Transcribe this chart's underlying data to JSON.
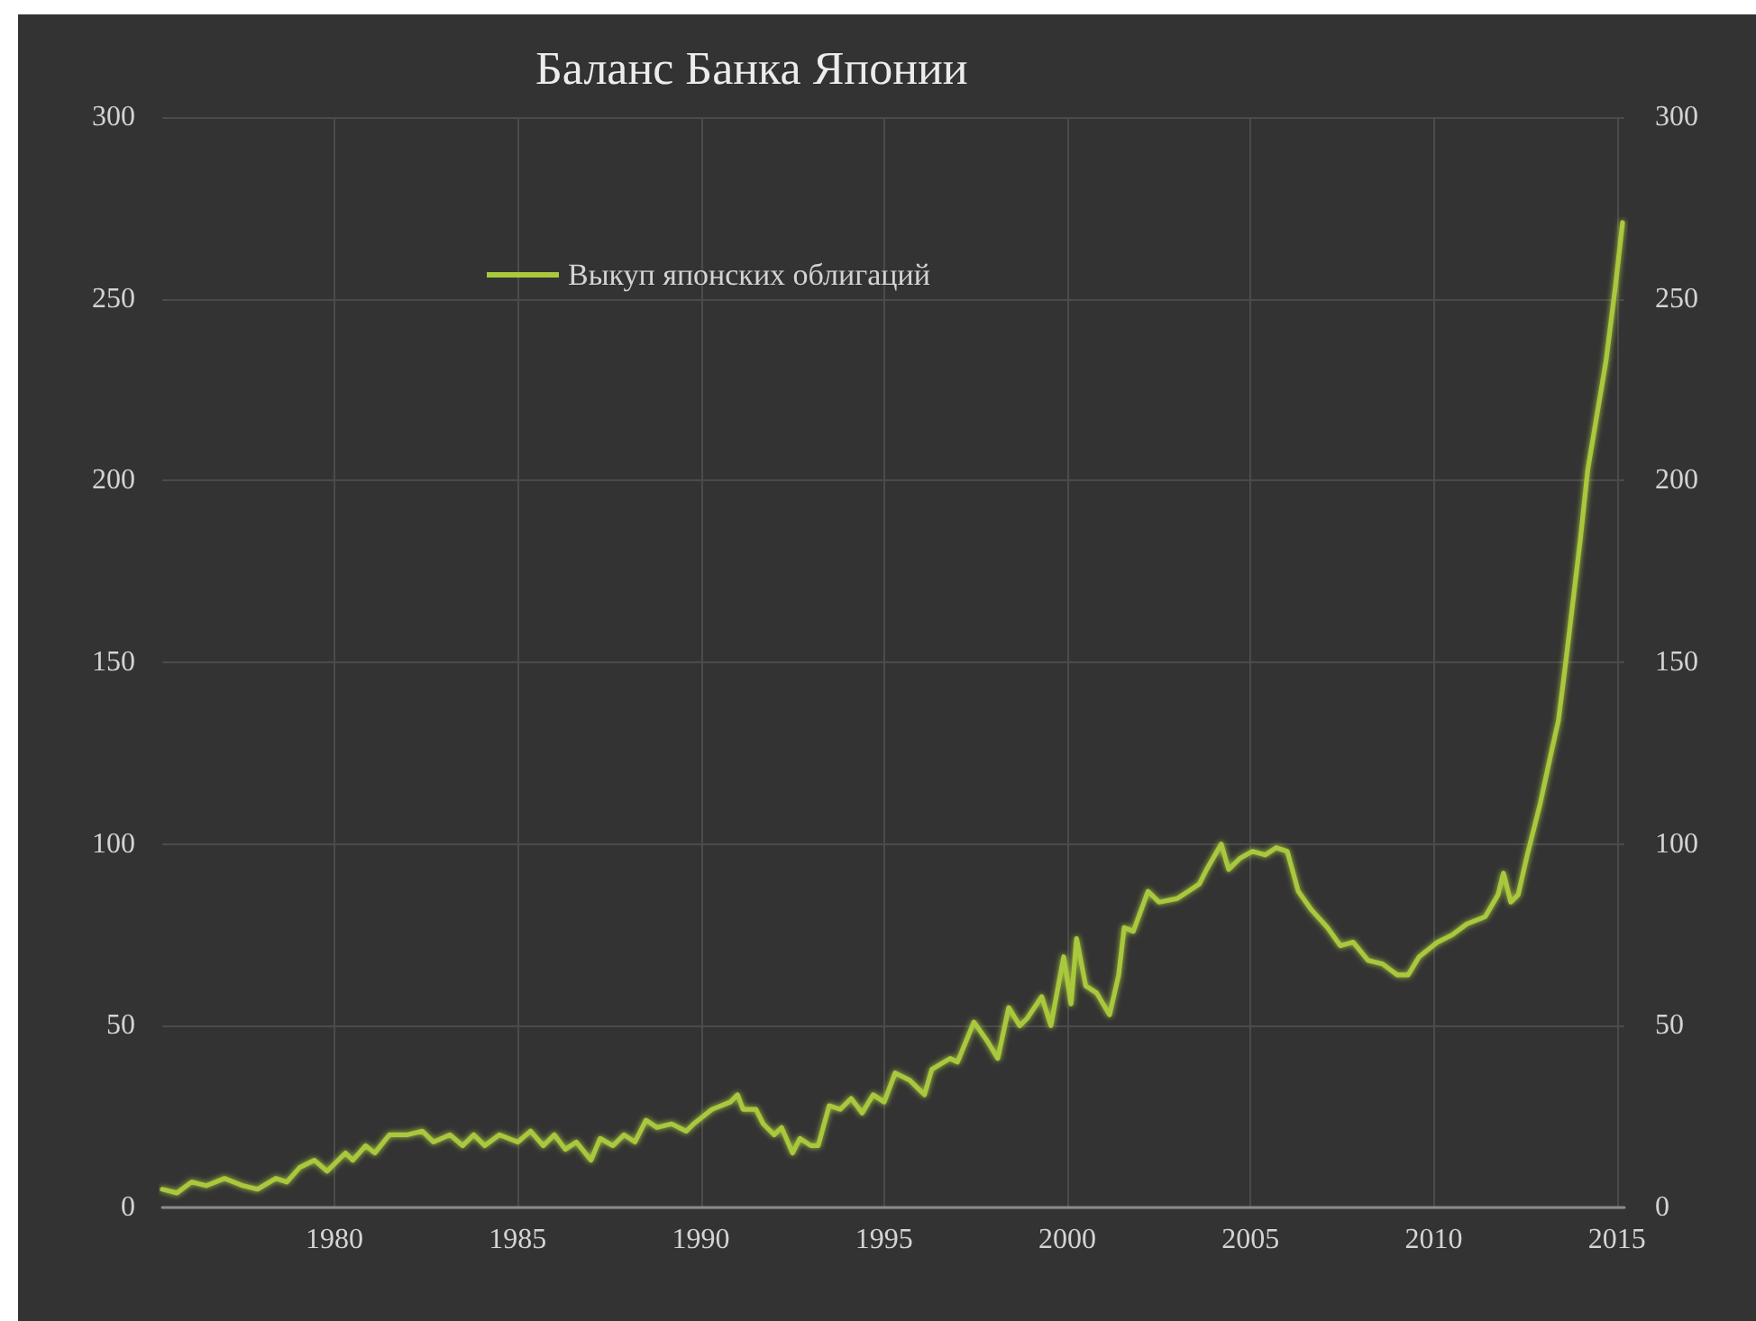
{
  "chart_data": {
    "type": "line",
    "title": "Баланс Банка Японии",
    "xlim": [
      1975.3,
      2015.2
    ],
    "xticks": [
      1980,
      1985,
      1990,
      1995,
      2000,
      2005,
      2010,
      2015
    ],
    "ylim": [
      0,
      300
    ],
    "yticks": [
      0,
      50,
      100,
      150,
      200,
      250,
      300
    ],
    "y2lim": [
      0,
      300
    ],
    "y2ticks": [
      0,
      50,
      100,
      150,
      200,
      250,
      300
    ],
    "grid": true,
    "legend": "top left",
    "marker": "none",
    "line_style": "solid",
    "series": [
      {
        "name": "Выкуп японских облигаций",
        "color": "#a9c83c",
        "x": [
          1975.3,
          1975.7,
          1976.1,
          1976.5,
          1977.0,
          1977.5,
          1977.9,
          1978.4,
          1978.7,
          1979.05,
          1979.45,
          1979.8,
          1980.3,
          1980.5,
          1980.85,
          1981.1,
          1981.5,
          1982.0,
          1982.4,
          1982.7,
          1983.15,
          1983.5,
          1983.8,
          1984.1,
          1984.5,
          1985.0,
          1985.35,
          1985.7,
          1986.0,
          1986.3,
          1986.6,
          1987.0,
          1987.25,
          1987.6,
          1987.9,
          1988.2,
          1988.5,
          1988.8,
          1989.2,
          1989.6,
          1989.8,
          1990.05,
          1990.3,
          1990.55,
          1990.8,
          1991.0,
          1991.15,
          1991.5,
          1991.7,
          1992.0,
          1992.2,
          1992.5,
          1992.7,
          1993.0,
          1993.2,
          1993.5,
          1993.8,
          1994.1,
          1994.4,
          1994.7,
          1995.0,
          1995.3,
          1995.7,
          1996.1,
          1996.3,
          1996.8,
          1997.0,
          1997.45,
          1997.8,
          1998.1,
          1998.4,
          1998.7,
          1998.9,
          1999.3,
          1999.55,
          1999.9,
          2000.1,
          2000.25,
          2000.5,
          2000.8,
          2001.15,
          2001.4,
          2001.55,
          2001.8,
          2002.2,
          2002.5,
          2003.0,
          2003.3,
          2003.6,
          2003.8,
          2004.2,
          2004.4,
          2004.7,
          2005.05,
          2005.4,
          2005.7,
          2006.0,
          2006.3,
          2006.65,
          2007.1,
          2007.45,
          2007.8,
          2008.2,
          2008.6,
          2009.0,
          2009.3,
          2009.6,
          2010.1,
          2010.5,
          2010.9,
          2011.4,
          2011.75,
          2011.9,
          2012.1,
          2012.3,
          2012.55,
          2012.9,
          2013.2,
          2013.4,
          2013.6,
          2014.0,
          2014.2,
          2014.7,
          2014.95,
          2015.15
        ],
        "values": [
          5,
          4,
          7,
          6,
          8,
          6,
          5,
          8,
          7,
          11,
          13,
          10,
          15,
          13,
          17,
          15,
          20,
          20,
          21,
          18,
          20,
          17,
          20,
          17,
          20,
          18,
          21,
          17,
          20,
          16,
          18,
          13,
          19,
          17,
          20,
          18,
          24,
          22,
          23,
          21,
          23,
          25,
          27,
          28,
          29,
          31,
          27,
          27,
          23,
          20,
          22,
          15,
          19,
          17,
          17,
          28,
          27,
          30,
          26,
          31,
          29,
          37,
          35,
          31,
          38,
          41,
          40,
          51,
          46,
          41,
          55,
          50,
          52,
          58,
          50,
          69,
          56,
          74,
          61,
          59,
          53,
          64,
          77,
          76,
          87,
          84,
          85,
          87,
          89,
          93,
          100,
          93,
          96,
          98,
          97,
          99,
          98,
          87,
          82,
          77,
          72,
          73,
          68,
          67,
          64,
          64,
          69,
          73,
          75,
          78,
          80,
          86,
          92,
          84,
          86,
          97,
          111,
          125,
          134,
          150,
          184,
          203,
          233,
          253,
          271
        ]
      }
    ]
  }
}
